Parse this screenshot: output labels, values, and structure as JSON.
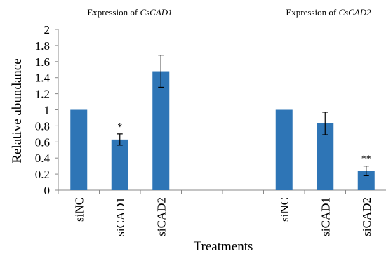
{
  "chart_data": {
    "type": "bar",
    "titles": [
      {
        "prefix": "Expression of ",
        "gene": "CsCAD1"
      },
      {
        "prefix": "Expression of ",
        "gene": "CsCAD2"
      }
    ],
    "xlabel": "Treatments",
    "ylabel": "Relative abundance",
    "ylim": [
      0,
      2
    ],
    "yticks": [
      "0",
      "0.2",
      "0.4",
      "0.6",
      "0.8",
      "1",
      "1.2",
      "1.4",
      "1.6",
      "1.8",
      "2"
    ],
    "bar_color": "#2e75b6",
    "grid": false,
    "groups": [
      {
        "bars": [
          {
            "label": "siNC",
            "value": 1.0,
            "error": 0.0,
            "sig": ""
          },
          {
            "label": "siCAD1",
            "value": 0.63,
            "error": 0.07,
            "sig": "*"
          },
          {
            "label": "siCAD2",
            "value": 1.48,
            "error": 0.2,
            "sig": ""
          }
        ]
      },
      {
        "bars": [
          {
            "label": "siNC",
            "value": 1.0,
            "error": 0.0,
            "sig": ""
          },
          {
            "label": "siCAD1",
            "value": 0.83,
            "error": 0.14,
            "sig": ""
          },
          {
            "label": "siCAD2",
            "value": 0.24,
            "error": 0.06,
            "sig": "**"
          }
        ]
      }
    ]
  }
}
